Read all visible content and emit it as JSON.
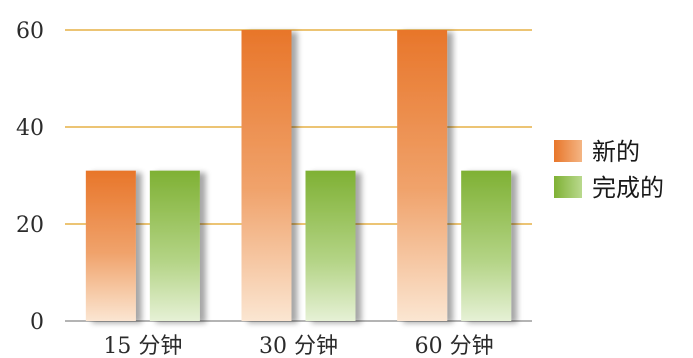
{
  "chart_data": {
    "type": "bar",
    "categories": [
      "15 分钟",
      "30 分钟",
      "60 分钟"
    ],
    "series": [
      {
        "name": "新的",
        "values": [
          31,
          60,
          60
        ],
        "color": "#E8762A"
      },
      {
        "name": "完成的",
        "values": [
          31,
          31,
          31
        ],
        "color": "#7FB134"
      }
    ],
    "yticks": [
      "0",
      "20",
      "40",
      "60"
    ],
    "ylim": [
      0,
      60
    ],
    "grid": true,
    "grid_color": "#E0A020",
    "legend": "right"
  }
}
